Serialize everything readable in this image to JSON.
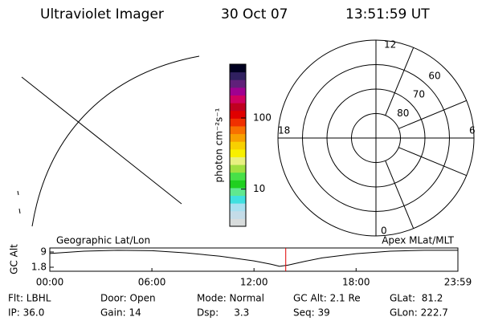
{
  "header": {
    "title": "Ultraviolet Imager",
    "date": "30 Oct 07",
    "time": "13:51:59 UT"
  },
  "chart_data": [
    {
      "type": "colorbar",
      "label": "photon cm⁻²s⁻¹",
      "log": true,
      "ylim": [
        3,
        570
      ],
      "yticks": [
        10,
        100
      ],
      "colors": [
        "#d8dcdc",
        "#c4dce8",
        "#a8e0f0",
        "#40e0e0",
        "#60e890",
        "#20d020",
        "#48e048",
        "#a0e040",
        "#e8f080",
        "#f8f000",
        "#f8d000",
        "#f8a000",
        "#f87000",
        "#f03000",
        "#e00000",
        "#c00020",
        "#d00060",
        "#a00090",
        "#60207a",
        "#302060",
        "#000020"
      ]
    },
    {
      "type": "polar",
      "rlim": [
        90,
        50
      ],
      "rticks": [
        80,
        70,
        60
      ],
      "hour_ticks": [
        12,
        6,
        0,
        18
      ]
    },
    {
      "type": "line",
      "ylabel": "GC Alt",
      "left_label": "Geographic Lat/Lon",
      "right_label": "Apex MLat/MLT",
      "x": [
        0,
        2,
        4,
        6,
        8,
        10,
        12,
        13,
        13.5,
        14,
        15,
        16,
        18,
        20,
        22,
        23.983
      ],
      "values": [
        8.3,
        9.4,
        9.8,
        9.6,
        8.6,
        7.0,
        4.8,
        3.2,
        2.2,
        2.8,
        4.6,
        6.2,
        8.2,
        9.4,
        9.8,
        9.8
      ],
      "color": "#000000",
      "marker_x": 13.866,
      "marker_color": "#e00000",
      "xlim": [
        0,
        23.983
      ],
      "ylim": [
        -0.1,
        10.9
      ],
      "xticks": [
        {
          "value": 0,
          "label": "00:00"
        },
        {
          "value": 6,
          "label": "06:00"
        },
        {
          "value": 12,
          "label": "12:00"
        },
        {
          "value": 18,
          "label": "18:00"
        },
        {
          "value": 23.983,
          "label": "23:59"
        }
      ],
      "yticks": [
        1.8,
        9.0
      ]
    }
  ],
  "info": {
    "rows": [
      [
        "Flt: LBHL",
        "Door: Open",
        "Mode: Normal",
        "GC Alt: 2.1 Re",
        "GLat:  81.2"
      ],
      [
        "IP: 36.0",
        "Gain: 14",
        "Dsp:     3.3",
        "Seq: 39",
        "GLon: 222.7"
      ]
    ]
  }
}
